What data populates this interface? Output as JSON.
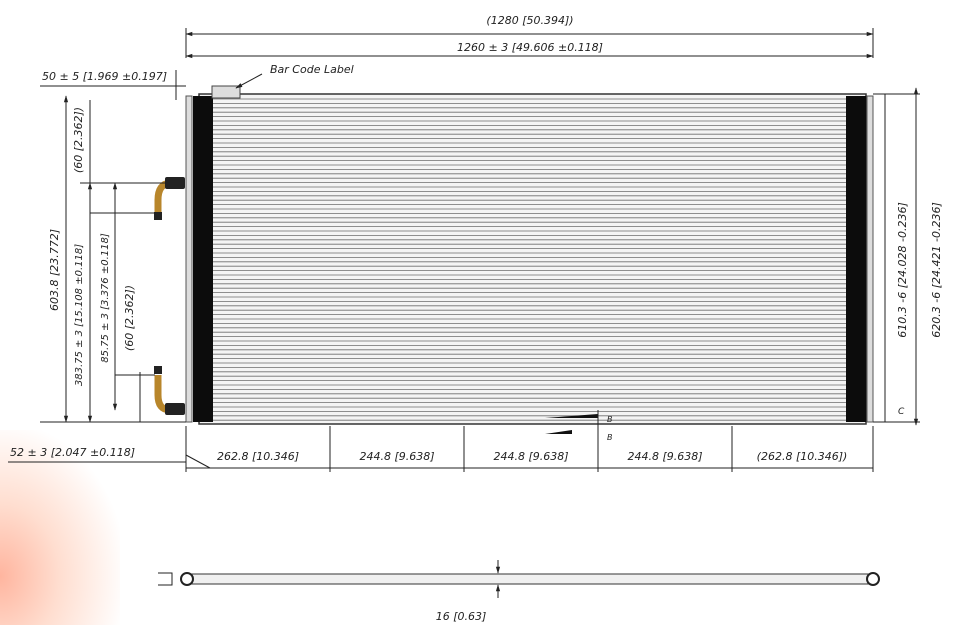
{
  "labels": {
    "overall_width": "(1280 [50.394])",
    "core_width": "1260 ± 3 [49.606 ±0.118]",
    "left_offset": "50 ± 5 [1.969 ±0.197]",
    "bar_code_label": "Bar Code Label",
    "pipe_top_spacing": "(60 [2.362])",
    "overall_height_left": "603.8 [23.772]",
    "pipe_offset_a": "383.75 ± 3 [15.108 ±0.118]",
    "pipe_offset_b": "85.75 ± 3 [3.376 ±0.118]",
    "pipe_bottom_spacing": "(60 [2.362])",
    "bottom_offset": "52 ± 3 [2.047 ±0.118]",
    "seg_1": "262.8 [10.346]",
    "seg_2": "244.8 [9.638]",
    "seg_3": "244.8 [9.638]",
    "seg_4": "244.8 [9.638]",
    "seg_5": "(262.8 [10.346])",
    "height_inner": "610.3 -6 [24.028 -0.236]",
    "height_outer": "620.3 -6 [24.421 -0.236]",
    "tol_zero": "0",
    "section_b": "B",
    "datum_c": "C",
    "thickness": "16 [0.63]"
  },
  "colors": {
    "line": "#222222",
    "fin": "#6d6d6d",
    "fin_bg": "#f4f4f4",
    "header": "#0c0c0c",
    "pipe": "#b8862b"
  }
}
